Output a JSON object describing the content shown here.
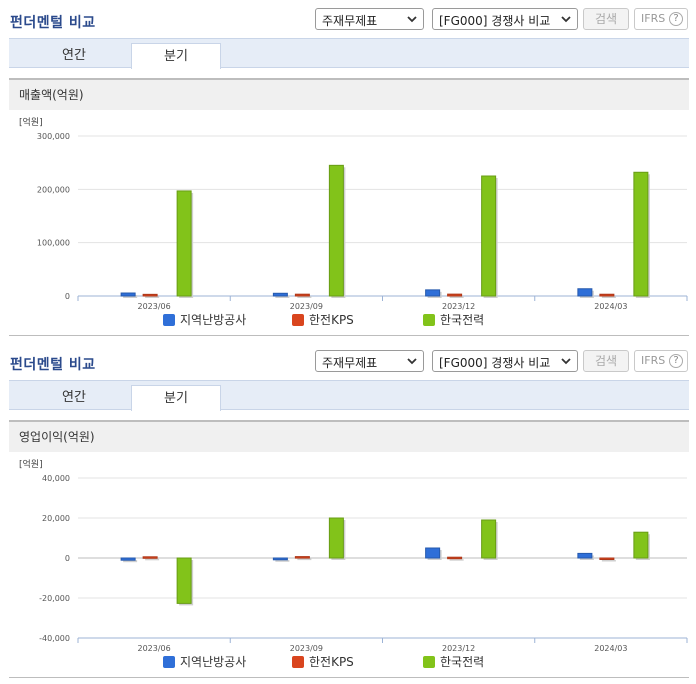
{
  "sections": [
    {
      "title": "펀더멘털 비교",
      "select_report": "주재무제표",
      "select_compare": "[FG000] 경쟁사 비교",
      "search_label": "검색",
      "ifrs_label": "IFRS",
      "help_glyph": "?",
      "tabs": [
        "연간",
        "분기"
      ],
      "active_tab": "분기",
      "panel_title": "매출액(억원)",
      "chart_data": {
        "type": "bar",
        "unit_label": "[억원]",
        "categories": [
          "2023/06",
          "2023/09",
          "2023/12",
          "2024/03"
        ],
        "ylim": [
          0,
          300000
        ],
        "yticks": [
          0,
          100000,
          200000,
          300000
        ],
        "ytick_labels": [
          "0",
          "100,000",
          "200,000",
          "300,000"
        ],
        "series": [
          {
            "name": "지역난방공사",
            "color": "#2f6fd8",
            "values": [
              5600,
              5100,
              11500,
              13600
            ]
          },
          {
            "name": "한전KPS",
            "color": "#d9451e",
            "values": [
              3100,
              3400,
              3500,
              3300
            ]
          },
          {
            "name": "한국전력",
            "color": "#82c31a",
            "values": [
              197000,
              245000,
              225000,
              232000
            ]
          }
        ],
        "grid": true,
        "legend": "bottom"
      }
    },
    {
      "title": "펀더멘털 비교",
      "select_report": "주재무제표",
      "select_compare": "[FG000] 경쟁사 비교",
      "search_label": "검색",
      "ifrs_label": "IFRS",
      "help_glyph": "?",
      "tabs": [
        "연간",
        "분기"
      ],
      "active_tab": "분기",
      "panel_title": "영업이익(억원)",
      "chart_data": {
        "type": "bar",
        "unit_label": "[억원]",
        "categories": [
          "2023/06",
          "2023/09",
          "2023/12",
          "2024/03"
        ],
        "ylim": [
          -40000,
          40000
        ],
        "yticks": [
          -40000,
          -20000,
          0,
          20000,
          40000
        ],
        "ytick_labels": [
          "-40,000",
          "-20,000",
          "0",
          "20,000",
          "40,000"
        ],
        "series": [
          {
            "name": "지역난방공사",
            "color": "#2f6fd8",
            "values": [
              -1100,
              -900,
              5000,
              2300
            ]
          },
          {
            "name": "한전KPS",
            "color": "#d9451e",
            "values": [
              600,
              700,
              400,
              -500
            ]
          },
          {
            "name": "한국전력",
            "color": "#82c31a",
            "values": [
              -22700,
              20000,
              19000,
              12900
            ]
          }
        ],
        "grid": true,
        "legend": "bottom"
      }
    }
  ]
}
